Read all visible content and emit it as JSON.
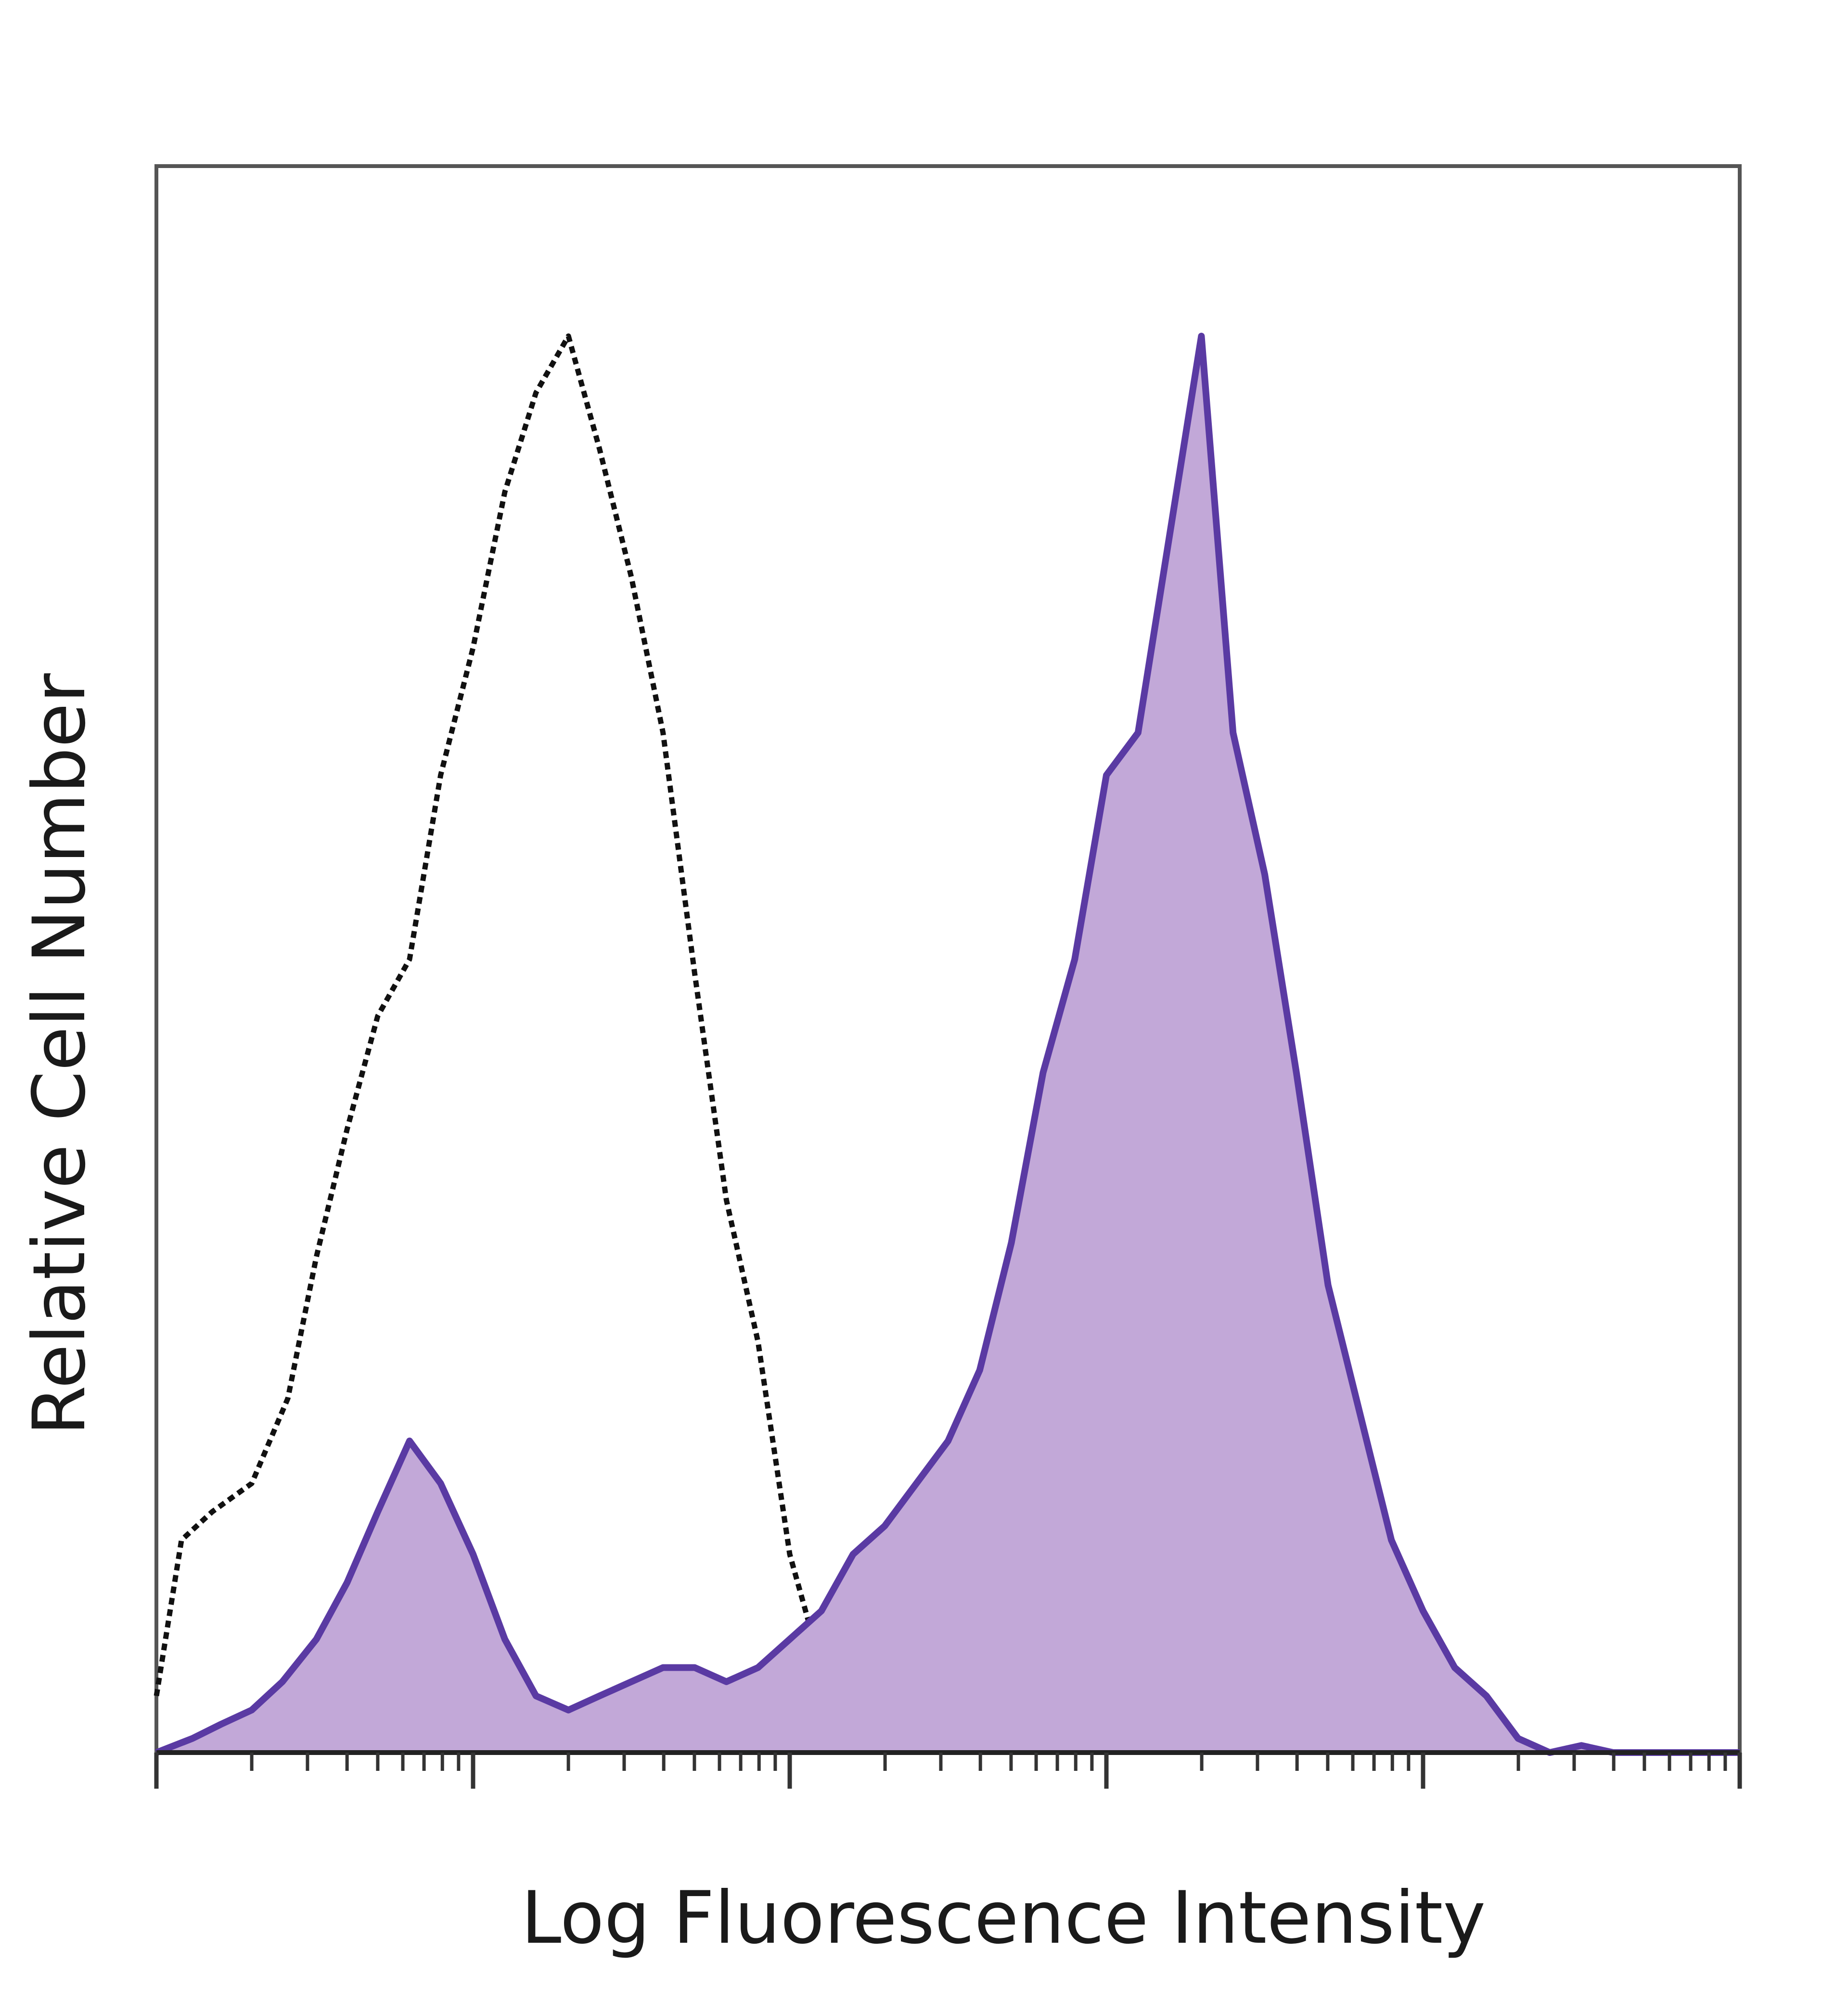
{
  "chart_data": {
    "type": "area",
    "xlabel": "Log Fluorescence Intensity",
    "ylabel": "Relative Cell Number",
    "xscale": "log",
    "xlim": [
      1,
      100000
    ],
    "ylim": [
      0,
      1.12
    ],
    "x_major_ticks": [
      1,
      10,
      100,
      1000,
      10000,
      100000
    ],
    "tick_labels_shown": false,
    "grid": false,
    "legend": "none",
    "series": [
      {
        "style": "dotted-outline",
        "color": "#111111",
        "x": [
          1.0,
          1.2,
          1.5,
          2.0,
          2.6,
          3.2,
          4.0,
          5.0,
          6.3,
          7.9,
          10.0,
          12.6,
          15.8,
          20.0,
          25.1,
          31.6,
          39.8,
          50.1,
          63.1,
          79.4,
          100,
          125.9,
          158.5,
          199.5,
          251.2
        ],
        "y": [
          0.04,
          0.15,
          0.17,
          0.19,
          0.25,
          0.35,
          0.44,
          0.52,
          0.56,
          0.69,
          0.78,
          0.89,
          0.96,
          1.0,
          0.92,
          0.83,
          0.72,
          0.55,
          0.39,
          0.29,
          0.14,
          0.06,
          0.03,
          0.01,
          0.0
        ]
      },
      {
        "style": "filled",
        "color": "#5a3aa3",
        "fill": "#c2a8d8",
        "x": [
          1.0,
          1.3,
          1.6,
          2.0,
          2.5,
          3.2,
          4.0,
          5.0,
          6.3,
          7.9,
          10.0,
          12.6,
          15.8,
          20.0,
          25.1,
          31.6,
          39.8,
          50.1,
          63.1,
          79.4,
          100,
          125.9,
          158.5,
          199.5,
          251.2,
          316.2,
          398.1,
          501.2,
          631.0,
          794.3,
          1000,
          1258.9,
          1584.9,
          1995.3,
          2511.9,
          3162.3,
          3981.1,
          5011.9,
          6309.6,
          7943.3,
          10000,
          12589,
          15849,
          19953,
          25119,
          31623,
          39811,
          63096,
          100000
        ],
        "y": [
          0.0,
          0.01,
          0.02,
          0.03,
          0.05,
          0.08,
          0.12,
          0.17,
          0.22,
          0.19,
          0.14,
          0.08,
          0.04,
          0.03,
          0.04,
          0.05,
          0.06,
          0.06,
          0.05,
          0.06,
          0.08,
          0.1,
          0.14,
          0.16,
          0.19,
          0.22,
          0.27,
          0.36,
          0.48,
          0.56,
          0.69,
          0.72,
          0.86,
          1.0,
          0.72,
          0.62,
          0.48,
          0.33,
          0.24,
          0.15,
          0.1,
          0.06,
          0.04,
          0.01,
          0.0,
          0.005,
          0.0,
          0.0,
          0.0
        ]
      }
    ]
  }
}
